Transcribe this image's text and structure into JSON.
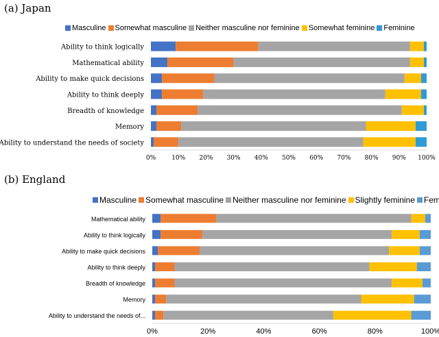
{
  "chart_data": [
    {
      "type": "bar",
      "orientation": "horizontal",
      "stacked": true,
      "title": "(a)  Japan",
      "categories": [
        "Ability to think logically",
        "Mathematical ability",
        "Ability to make quick decisions",
        "Ability to think deeply",
        "Breadth of knowledge",
        "Memory",
        "Ability to understand the needs of society"
      ],
      "series": [
        {
          "name": "Masculine",
          "color": "#4472C4",
          "values": [
            9,
            6,
            4,
            4,
            2,
            2,
            1
          ]
        },
        {
          "name": "Somewhat masculine",
          "color": "#ED7D31",
          "values": [
            30,
            24,
            19,
            15,
            15,
            9,
            9
          ]
        },
        {
          "name": "Neither masculine nor feminine",
          "color": "#A5A5A5",
          "values": [
            55,
            64,
            69,
            66,
            74,
            67,
            67
          ]
        },
        {
          "name": "Somewhat feminine",
          "color": "#FFC000",
          "values": [
            5,
            5,
            6,
            13,
            8,
            18,
            19
          ]
        },
        {
          "name": "Feminine",
          "color": "#2E9BD6",
          "values": [
            1,
            1,
            2,
            2,
            1,
            4,
            4
          ]
        }
      ],
      "xticks": [
        "0%",
        "10%",
        "20%",
        "30%",
        "40%",
        "50%",
        "60%",
        "70%",
        "80%",
        "90%",
        "100%"
      ],
      "xlim": [
        0,
        100
      ],
      "grid": false,
      "legend": "top"
    },
    {
      "type": "bar",
      "orientation": "horizontal",
      "stacked": true,
      "title": "(b)  England",
      "categories": [
        "Mathematical ability",
        "Ability to think logically",
        "Ability to make quick decisions",
        "Ability to think deeply",
        "Breadth of knowledge",
        "Memory",
        "Ability to understand the needs of..."
      ],
      "series": [
        {
          "name": "Masculine",
          "color": "#4472C4",
          "values": [
            3,
            3,
            2,
            1,
            1,
            1,
            1
          ]
        },
        {
          "name": "Somewhat masculine",
          "color": "#ED7D31",
          "values": [
            20,
            15,
            15,
            7,
            7,
            4,
            3
          ]
        },
        {
          "name": "Neither masculine nor feminine",
          "color": "#A5A5A5",
          "values": [
            70,
            68,
            68,
            70,
            78,
            70,
            61
          ]
        },
        {
          "name": "Slightly feminine",
          "color": "#FFC000",
          "values": [
            5,
            10,
            11,
            17,
            11,
            19,
            28
          ]
        },
        {
          "name": "Feminine",
          "color": "#5B9BD5",
          "values": [
            2,
            4,
            4,
            5,
            3,
            6,
            7
          ]
        }
      ],
      "xticks": [
        "0%",
        "20%",
        "40%",
        "60%",
        "80%",
        "100%"
      ],
      "xlim": [
        0,
        100
      ],
      "grid": false,
      "legend": "top"
    }
  ]
}
